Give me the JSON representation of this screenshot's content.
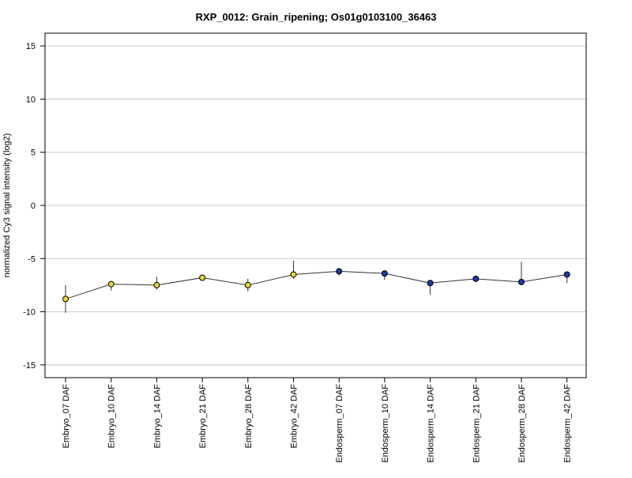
{
  "chart_data": {
    "type": "line",
    "title": "RXP_0012: Grain_ripening; Os01g0103100_36463",
    "xlabel": "",
    "ylabel": "normalized Cy3 signal intensity (log2)",
    "ylim": [
      -16.2,
      16.2
    ],
    "yticks": [
      15,
      10,
      5,
      0,
      -5,
      -10,
      -15
    ],
    "ytick_labels": [
      "15",
      "10",
      "5",
      "0",
      "-5",
      "-10",
      "-15"
    ],
    "grid": "horizontal",
    "categories": [
      "Embryo_07 DAF",
      "Embryo_10 DAF",
      "Embryo_14 DAF",
      "Embryo_21 DAF",
      "Embryo_28 DAF",
      "Embryo_42 DAF",
      "Endosperm_07 DAF",
      "Endosperm_10 DAF",
      "Endosperm_14 DAF",
      "Endosperm_21 DAF",
      "Endosperm_28 DAF",
      "Endosperm_42 DAF"
    ],
    "series": [
      {
        "values": [
          -8.8,
          -7.4,
          -7.5,
          -6.8,
          -7.5,
          -6.5,
          -6.2,
          -6.4,
          -7.3,
          -6.9,
          -7.2,
          -6.5
        ],
        "error_low": [
          -10.1,
          -8.0,
          -7.9,
          -6.9,
          -8.1,
          -6.9,
          -6.6,
          -7.0,
          -8.4,
          -7.0,
          -7.4,
          -7.3
        ],
        "error_high": [
          -7.5,
          -7.3,
          -6.7,
          -6.7,
          -6.9,
          -5.2,
          -6.0,
          -6.3,
          -7.0,
          -6.8,
          -5.3,
          -6.3
        ],
        "marker_colors": [
          "#e8d33c",
          "#e8d33c",
          "#e8d33c",
          "#e8d33c",
          "#e8d33c",
          "#e8d33c",
          "#1c3aa8",
          "#1c3aa8",
          "#1c3aa8",
          "#1c3aa8",
          "#1c3aa8",
          "#1c3aa8"
        ]
      }
    ],
    "colors": {
      "line": "#333333",
      "grid": "#c8c8c8",
      "frame": "#000000",
      "marker_stroke": "#000000",
      "embryo": "#e8d33c",
      "endosperm": "#1c3aa8"
    }
  }
}
